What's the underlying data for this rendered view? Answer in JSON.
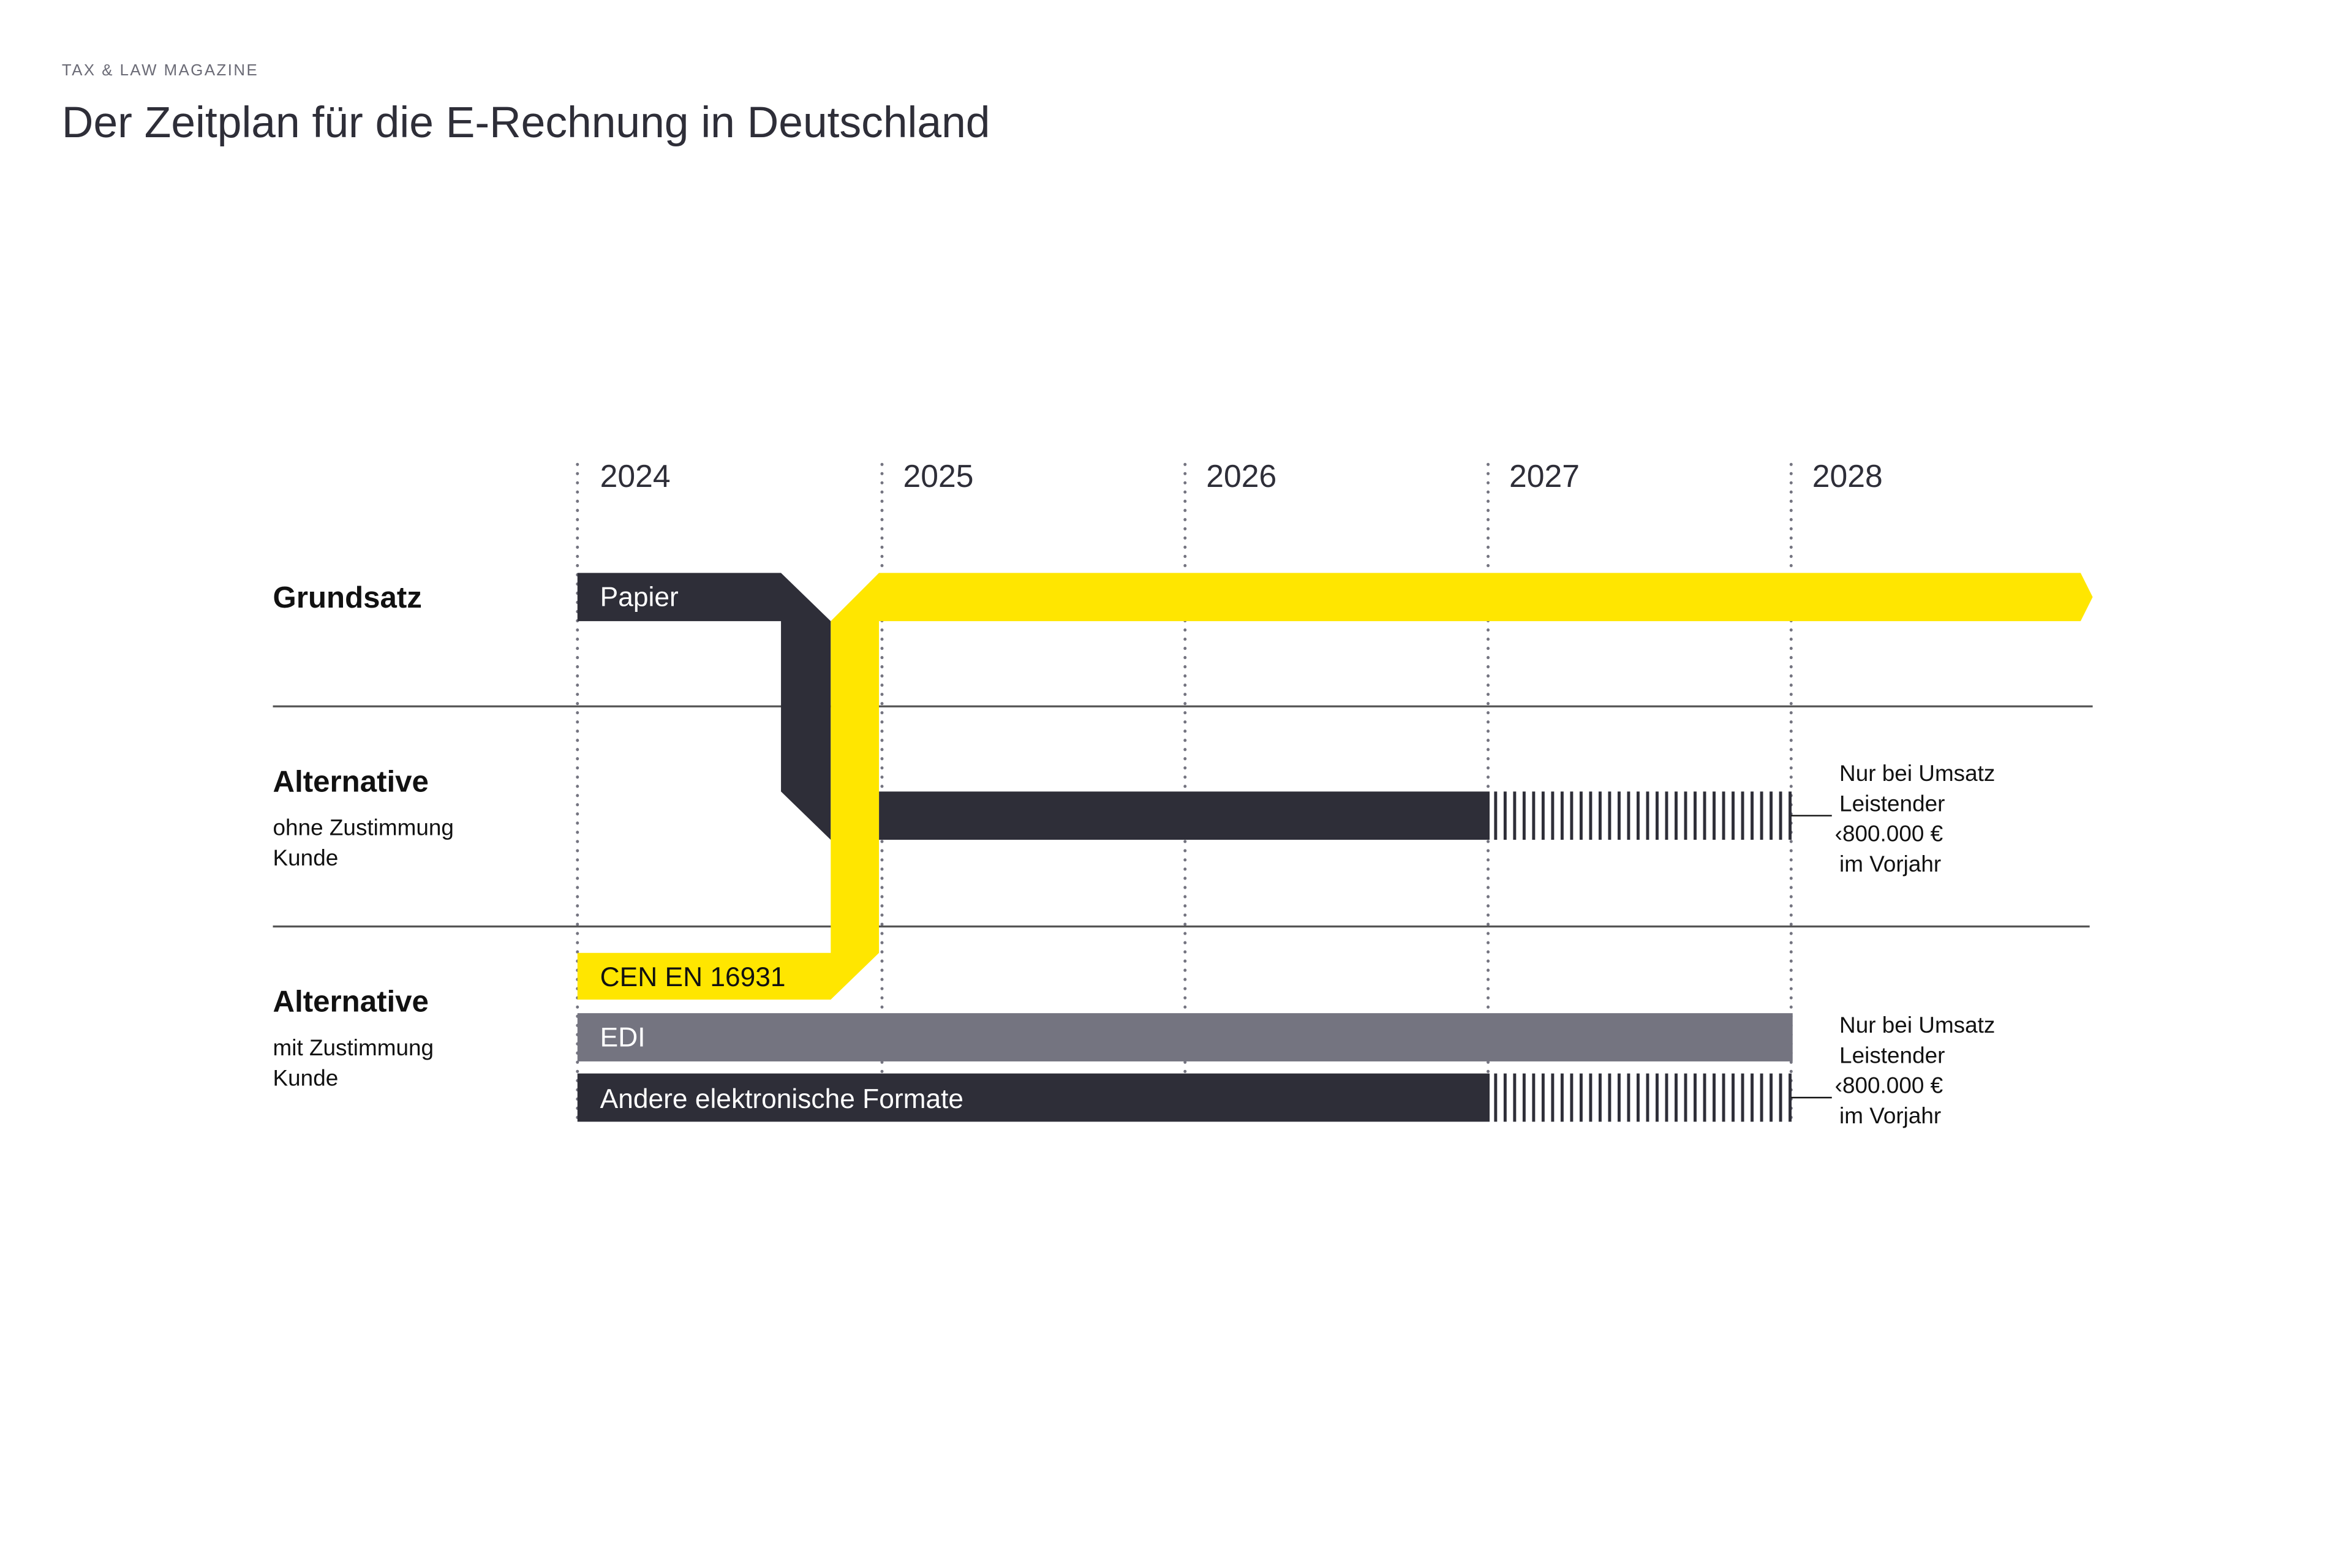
{
  "header": {
    "kicker": "TAX & LAW MAGAZINE",
    "title": "Der Zeitplan für die E-Rechnung in Deutschland"
  },
  "timeline": {
    "years": [
      "2024",
      "2025",
      "2026",
      "2027",
      "2028"
    ]
  },
  "rows": [
    {
      "label": "Grundsatz",
      "sub": []
    },
    {
      "label": "Alternative",
      "sub": [
        "ohne Zustimmung",
        "Kunde"
      ]
    },
    {
      "label": "Alternative",
      "sub": [
        "mit Zustimmung",
        "Kunde"
      ]
    }
  ],
  "bars": {
    "papier": "Papier",
    "cen": "CEN EN 16931",
    "edi": "EDI",
    "andere": "Andere elektronische Formate"
  },
  "notes": [
    [
      "Nur bei Umsatz",
      "Leistender",
      "‹800.000 €",
      "im Vorjahr"
    ],
    [
      "Nur bei Umsatz",
      "Leistender",
      "‹800.000 €",
      "im Vorjahr"
    ]
  ],
  "colors": {
    "yellow": "#ffe600",
    "dark": "#2e2e38",
    "gray": "#747480"
  }
}
